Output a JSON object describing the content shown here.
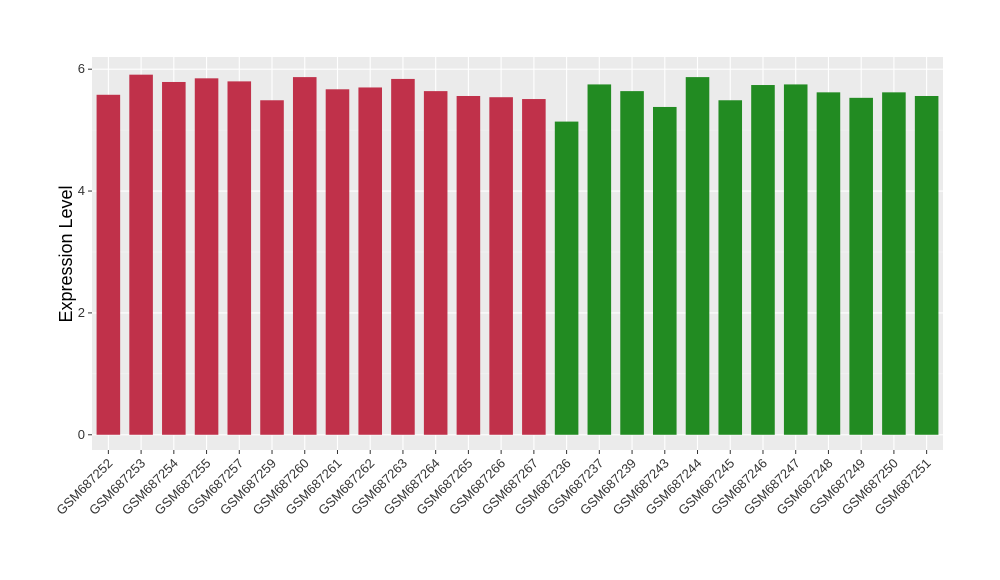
{
  "chart_data": {
    "type": "bar",
    "title": "",
    "xlabel": "",
    "ylabel": "Expression Level",
    "ylim": [
      -0.25,
      6.2
    ],
    "yticks": [
      0,
      2,
      4,
      6
    ],
    "grid": true,
    "legend": "none",
    "categories": [
      "GSM687252",
      "GSM687253",
      "GSM687254",
      "GSM687255",
      "GSM687257",
      "GSM687259",
      "GSM687260",
      "GSM687261",
      "GSM687262",
      "GSM687263",
      "GSM687264",
      "GSM687265",
      "GSM687266",
      "GSM687267",
      "GSM687236",
      "GSM687237",
      "GSM687239",
      "GSM687243",
      "GSM687244",
      "GSM687245",
      "GSM687246",
      "GSM687247",
      "GSM687248",
      "GSM687249",
      "GSM687250",
      "GSM687251"
    ],
    "values": [
      5.58,
      5.91,
      5.79,
      5.85,
      5.8,
      5.49,
      5.87,
      5.67,
      5.7,
      5.84,
      5.64,
      5.56,
      5.54,
      5.51,
      5.14,
      5.75,
      5.64,
      5.38,
      5.87,
      5.49,
      5.74,
      5.75,
      5.62,
      5.53,
      5.62,
      5.56
    ],
    "groups": [
      "red",
      "red",
      "red",
      "red",
      "red",
      "red",
      "red",
      "red",
      "red",
      "red",
      "red",
      "red",
      "red",
      "red",
      "green",
      "green",
      "green",
      "green",
      "green",
      "green",
      "green",
      "green",
      "green",
      "green",
      "green",
      "green"
    ],
    "colors": {
      "red": "#C0314A",
      "green": "#228B22",
      "panel": "#EBEBEB",
      "grid_major": "#FFFFFF",
      "grid_minor": "#F5F5F5"
    }
  }
}
